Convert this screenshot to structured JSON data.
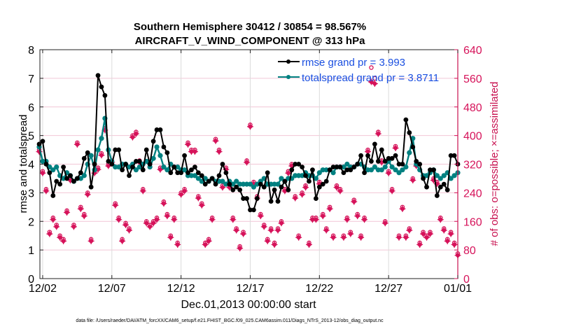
{
  "chart_data": {
    "type": "line",
    "title": "Southern Hemisphere 30412 / 30854 = 98.567%",
    "subtitle": "AIRCRAFT_V_WIND_COMPONENT @ 313 hPa",
    "xlabel": "Dec.01,2013 00:00:00 start",
    "ylabel": "rmse and totalspread",
    "y2label": "# of obs: o=possible; ×=assimilated",
    "footnote": "data file: /Users/raeder/DAI/ATM_forcXX/CAM6_setup/f.e21.FHIST_BGC.f09_025.CAM6assim.011/Diags_NTrS_2013-12/obs_diag_output.nc",
    "xlim_days": [
      0.8,
      31
    ],
    "ylim": [
      0,
      8
    ],
    "y2lim": [
      0,
      640
    ],
    "xticks": [
      {
        "day": 1,
        "label": "12/02"
      },
      {
        "day": 6,
        "label": "12/07"
      },
      {
        "day": 11,
        "label": "12/12"
      },
      {
        "day": 16,
        "label": "12/17"
      },
      {
        "day": 21,
        "label": "12/22"
      },
      {
        "day": 26,
        "label": "12/27"
      },
      {
        "day": 31,
        "label": "01/01"
      }
    ],
    "yticks": [
      "0",
      "1",
      "2",
      "3",
      "4",
      "5",
      "6",
      "7",
      "8"
    ],
    "y2ticks": [
      "0",
      "80",
      "160",
      "240",
      "320",
      "400",
      "480",
      "560",
      "640"
    ],
    "grid": "horizontal (right axis) + vertical at x ticks",
    "legend_position": "top-right",
    "legend": [
      {
        "label": "rmse grand pr = 3.993",
        "color": "#000000"
      },
      {
        "label": "totalspread grand pr = 3.8711",
        "color": "#008080"
      }
    ],
    "colors": {
      "rmse": "#000000",
      "totalspread": "#008080",
      "obs": "#d6135a",
      "legend_text": "#1a4fe0",
      "grid": "#f2c6d6"
    },
    "x_days": [
      0.75,
      1.0,
      1.25,
      1.5,
      1.75,
      2.0,
      2.25,
      2.5,
      2.75,
      3.0,
      3.25,
      3.5,
      3.75,
      4.0,
      4.25,
      4.5,
      4.75,
      5.0,
      5.25,
      5.5,
      5.75,
      6.0,
      6.25,
      6.5,
      6.75,
      7.0,
      7.25,
      7.5,
      7.75,
      8.0,
      8.25,
      8.5,
      8.75,
      9.0,
      9.25,
      9.5,
      9.75,
      10.0,
      10.25,
      10.5,
      10.75,
      11.0,
      11.25,
      11.5,
      11.75,
      12.0,
      12.25,
      12.5,
      12.75,
      13.0,
      13.25,
      13.5,
      13.75,
      14.0,
      14.25,
      14.5,
      14.75,
      15.0,
      15.25,
      15.5,
      15.75,
      16.0,
      16.25,
      16.5,
      16.75,
      17.0,
      17.25,
      17.5,
      17.75,
      18.0,
      18.25,
      18.5,
      18.75,
      19.0,
      19.25,
      19.5,
      19.75,
      20.0,
      20.25,
      20.5,
      20.75,
      21.0,
      21.25,
      21.5,
      21.75,
      22.0,
      22.25,
      22.5,
      22.75,
      23.0,
      23.25,
      23.5,
      23.75,
      24.0,
      24.25,
      24.5,
      24.75,
      25.0,
      25.25,
      25.5,
      25.75,
      26.0,
      26.25,
      26.5,
      26.75,
      27.0,
      27.25,
      27.5,
      27.75,
      28.0,
      28.25,
      28.5,
      28.75,
      29.0,
      29.25,
      29.5,
      29.75,
      30.0,
      30.25,
      30.5,
      30.75,
      31.0
    ],
    "series": [
      {
        "name": "rmse",
        "values": [
          4.7,
          4.8,
          4.0,
          3.7,
          2.9,
          3.4,
          3.3,
          3.9,
          3.5,
          3.6,
          3.4,
          3.5,
          3.7,
          4.2,
          4.4,
          3.2,
          4.0,
          7.1,
          6.7,
          6.4,
          4.1,
          4.0,
          4.5,
          4.5,
          3.8,
          4.0,
          3.6,
          3.9,
          4.1,
          4.1,
          3.8,
          4.5,
          4.0,
          4.8,
          5.2,
          5.2,
          4.6,
          4.4,
          3.7,
          3.9,
          3.7,
          3.7,
          4.3,
          3.7,
          3.8,
          3.9,
          3.7,
          3.6,
          3.3,
          3.4,
          3.5,
          3.3,
          3.6,
          4.0,
          3.7,
          3.3,
          3.1,
          3.2,
          3.1,
          2.8,
          2.8,
          2.4,
          2.4,
          2.8,
          3.3,
          3.2,
          3.7,
          2.7,
          3.1,
          2.7,
          3.2,
          3.4,
          3.1,
          3.8,
          4.0,
          4.0,
          3.9,
          3.6,
          3.4,
          3.8,
          2.8,
          3.2,
          3.3,
          3.4,
          3.8,
          3.9,
          3.9,
          3.9,
          3.7,
          3.8,
          3.8,
          3.9,
          4.0,
          4.3,
          3.7,
          4.3,
          4.1,
          4.7,
          4.1,
          4.5,
          4.1,
          4.2,
          4.2,
          4.3,
          4.0,
          4.0,
          5.55,
          5.1,
          4.6,
          4.1,
          4.0,
          3.5,
          3.2,
          3.8,
          3.8,
          2.9,
          3.2,
          3.3,
          3.1,
          4.3,
          4.3,
          4.0,
          3.5,
          3.4,
          3.6,
          3.2,
          3.2,
          3.4,
          3.1,
          2.9,
          2.7,
          4.9,
          4.5,
          4.4,
          4.5,
          3.8
        ]
      },
      {
        "name": "totalspread",
        "values": [
          4.6,
          4.1,
          4.1,
          3.9,
          3.8,
          3.9,
          3.6,
          3.5,
          3.7,
          3.6,
          3.4,
          3.5,
          3.5,
          3.6,
          4.0,
          4.3,
          3.8,
          4.5,
          4.9,
          5.6,
          4.5,
          4.1,
          3.9,
          3.9,
          4.0,
          4.0,
          3.9,
          4.0,
          3.8,
          3.9,
          4.0,
          4.1,
          3.9,
          4.2,
          4.6,
          4.3,
          3.9,
          3.8,
          4.0,
          3.9,
          3.9,
          3.8,
          3.8,
          3.6,
          3.6,
          3.6,
          3.5,
          3.4,
          3.5,
          3.4,
          3.5,
          3.4,
          3.4,
          3.4,
          3.3,
          3.4,
          3.3,
          3.4,
          3.3,
          3.3,
          3.3,
          3.3,
          3.2,
          3.3,
          3.4,
          3.5,
          3.3,
          3.3,
          3.3,
          3.3,
          3.5,
          3.4,
          3.5,
          3.5,
          3.6,
          3.6,
          3.6,
          3.7,
          3.6,
          3.6,
          3.5,
          3.7,
          3.8,
          3.8,
          3.8,
          3.7,
          3.9,
          3.9,
          3.9,
          4.0,
          3.9,
          3.9,
          4.0,
          4.0,
          3.9,
          3.8,
          3.8,
          3.9,
          3.8,
          3.8,
          3.9,
          4.1,
          3.9,
          3.8,
          3.7,
          3.8,
          3.9,
          4.4,
          4.9,
          4.0,
          3.8,
          3.6,
          3.6,
          3.7,
          3.8,
          3.6,
          3.5,
          3.6,
          3.7,
          3.5,
          3.6,
          3.7,
          3.7,
          3.6,
          3.9,
          4.3,
          3.9,
          3.7,
          3.8,
          3.6,
          3.8,
          3.7,
          3.8,
          4.0,
          4.0,
          4.1,
          4.2,
          4.0,
          3.8
        ]
      },
      {
        "name": "obs_possible",
        "axis": "right",
        "values": [
          360,
          300,
          250,
          130,
          170,
          150,
          120,
          110,
          190,
          280,
          150,
          380,
          200,
          180,
          240,
          110,
          300,
          310,
          350,
          420,
          320,
          330,
          210,
          170,
          110,
          155,
          140,
          400,
          410,
          330,
          250,
          160,
          150,
          160,
          170,
          310,
          215,
          180,
          120,
          170,
          100,
          240,
          250,
          380,
          360,
          360,
          230,
          210,
          100,
          110,
          170,
          390,
          360,
          260,
          310,
          260,
          170,
          140,
          90,
          130,
          330,
          430,
          270,
          230,
          180,
          150,
          110,
          140,
          100,
          140,
          160,
          250,
          300,
          320,
          230,
          120,
          240,
          260,
          100,
          170,
          170,
          270,
          180,
          140,
          200,
          120,
          260,
          250,
          120,
          170,
          130,
          220,
          180,
          120,
          170,
          360,
          590,
          560,
          410,
          330,
          160,
          300,
          250,
          370,
          120,
          200,
          120,
          140,
          280,
          320,
          100,
          130,
          120,
          130,
          280,
          270,
          170,
          140,
          110,
          130,
          100,
          70,
          250,
          220,
          110,
          120,
          90,
          200,
          280,
          150,
          100,
          230
        ]
      },
      {
        "name": "obs_assimilated",
        "axis": "right",
        "values": [
          355,
          295,
          245,
          125,
          165,
          145,
          115,
          105,
          185,
          275,
          145,
          375,
          195,
          175,
          235,
          105,
          295,
          305,
          345,
          415,
          315,
          325,
          205,
          165,
          105,
          150,
          135,
          395,
          405,
          325,
          245,
          155,
          145,
          155,
          165,
          305,
          210,
          175,
          115,
          165,
          95,
          235,
          245,
          375,
          355,
          355,
          225,
          205,
          95,
          105,
          165,
          385,
          355,
          255,
          305,
          255,
          165,
          135,
          85,
          125,
          325,
          425,
          265,
          225,
          175,
          145,
          105,
          135,
          95,
          135,
          155,
          245,
          295,
          315,
          225,
          115,
          235,
          255,
          95,
          165,
          165,
          265,
          175,
          135,
          195,
          115,
          255,
          245,
          115,
          165,
          125,
          215,
          175,
          115,
          165,
          355,
          550,
          545,
          405,
          325,
          155,
          295,
          245,
          365,
          115,
          195,
          115,
          135,
          275,
          315,
          95,
          125,
          115,
          125,
          275,
          265,
          165,
          135,
          105,
          125,
          95,
          65,
          245,
          215,
          105,
          115,
          85,
          195,
          275,
          145,
          95,
          0
        ]
      }
    ]
  }
}
